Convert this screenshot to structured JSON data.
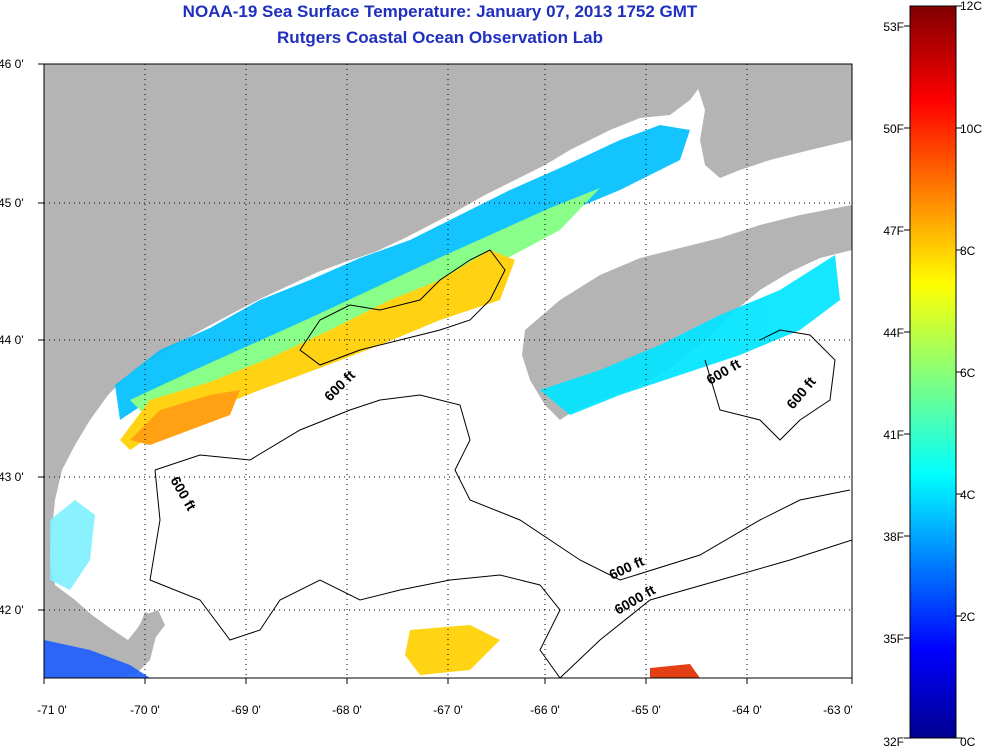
{
  "title": {
    "line1": "NOAA-19 Sea Surface Temperature:  January 07, 2013 1752 GMT",
    "line2": "Rutgers Coastal Ocean Observation Lab"
  },
  "map": {
    "lat_labels": [
      "46 0'",
      "45 0'",
      "44 0'",
      "43 0'",
      "42 0'"
    ],
    "lon_labels": [
      "-71 0'",
      "-70 0'",
      "-69 0'",
      "-68 0'",
      "-67 0'",
      "-66 0'",
      "-65 0'",
      "-64 0'",
      "-63 0'"
    ],
    "contour_labels": [
      "600 ft",
      "600 ft",
      "600 ft",
      "600 ft",
      "600 ft",
      "6000 ft"
    ],
    "land_color": "#b4b4b4",
    "ocean_color": "#ffffff",
    "grid_style": "dotted"
  },
  "colorbar": {
    "fahrenheit_labels": [
      "53F",
      "50F",
      "47F",
      "44F",
      "41F",
      "38F",
      "35F",
      "32F"
    ],
    "celsius_labels": [
      "12C",
      "10C",
      "8C",
      "6C",
      "4C",
      "2C",
      "0C"
    ],
    "colormap": "jet",
    "range_c": [
      0,
      12
    ]
  },
  "icons": {
    "map": "sea-surface-temperature-map",
    "colorbar": "temperature-colorbar"
  }
}
